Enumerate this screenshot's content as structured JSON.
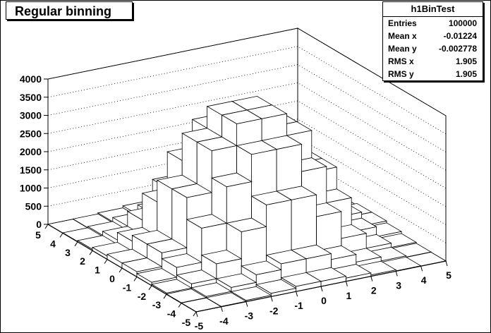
{
  "chart_data": {
    "type": "lego",
    "title": "Regular binning",
    "xlabel": "",
    "ylabel": "",
    "zlabel": "",
    "xlim": [
      -5,
      5
    ],
    "ylim": [
      -5,
      5
    ],
    "zlim": [
      0,
      4000
    ],
    "z_ticks": [
      "0",
      "500",
      "1000",
      "1500",
      "2000",
      "2500",
      "3000",
      "3500",
      "4000"
    ],
    "x_ticks": [
      "-5",
      "-4",
      "-3",
      "-2",
      "-1",
      "0",
      "1",
      "2",
      "3",
      "4",
      "5"
    ],
    "y_ticks": [
      "-5",
      "-4",
      "-3",
      "-2",
      "-1",
      "0",
      "1",
      "2",
      "3",
      "4",
      "5"
    ],
    "grid": true,
    "x_bin_edges": [
      -5,
      -4,
      -3,
      -2,
      -1,
      0,
      1,
      2,
      3,
      4,
      5
    ],
    "y_bin_edges": [
      -5,
      -4,
      -3,
      -2,
      -1,
      0,
      1,
      2,
      3,
      4,
      5
    ],
    "z_values_rows_y_ascending": [
      [
        2,
        8,
        35,
        90,
        140,
        140,
        90,
        35,
        8,
        2
      ],
      [
        8,
        40,
        150,
        360,
        520,
        520,
        360,
        150,
        40,
        8
      ],
      [
        35,
        150,
        560,
        1300,
        1900,
        1900,
        1300,
        560,
        150,
        35
      ],
      [
        90,
        360,
        1300,
        2300,
        3050,
        3050,
        2300,
        1300,
        360,
        90
      ],
      [
        140,
        520,
        1900,
        3050,
        3650,
        3650,
        3050,
        1900,
        520,
        140
      ],
      [
        140,
        520,
        1900,
        3050,
        3650,
        3650,
        3050,
        1900,
        520,
        140
      ],
      [
        90,
        360,
        1300,
        2300,
        3050,
        3050,
        2300,
        1300,
        360,
        90
      ],
      [
        35,
        150,
        560,
        1300,
        1900,
        1900,
        1300,
        560,
        150,
        35
      ],
      [
        8,
        40,
        150,
        360,
        520,
        520,
        360,
        150,
        40,
        8
      ],
      [
        2,
        8,
        35,
        90,
        140,
        140,
        90,
        35,
        8,
        2
      ]
    ],
    "stats": {
      "name": "h1BinTest",
      "entries": [
        "Entries",
        "100000"
      ],
      "mean_x": [
        "Mean x",
        "-0.01224"
      ],
      "mean_y": [
        "Mean y",
        "-0.002778"
      ],
      "rms_x": [
        "RMS x",
        "1.905"
      ],
      "rms_y": [
        "RMS y",
        "1.905"
      ]
    }
  },
  "colors": {
    "background": "#ffffff",
    "frame": "#000000",
    "grid": "#000000",
    "bar_top": "#ffffff",
    "bar_front": "#ffffff",
    "bar_side": "#ffffff",
    "bar_edge": "#000000"
  }
}
